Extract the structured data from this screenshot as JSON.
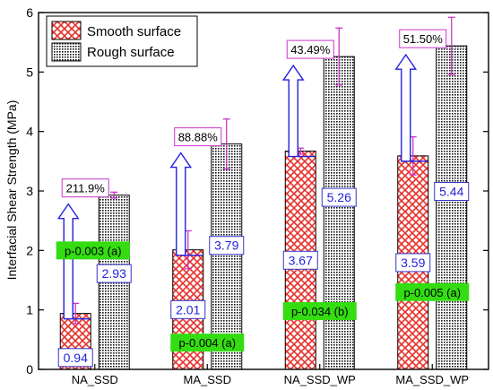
{
  "chart_data": {
    "type": "bar",
    "ylabel": "Interfacial Shear Strength (MPa)",
    "xlabel": "",
    "ylim": [
      0,
      6
    ],
    "yticks": [
      "0",
      "1",
      "2",
      "3",
      "4",
      "5",
      "6"
    ],
    "categories": [
      "NA_SSD",
      "MA_SSD",
      "NA_SSD_WP",
      "MA_SSD_WP"
    ],
    "legend_position": "top-left",
    "series": [
      {
        "name": "Smooth surface",
        "pattern": "crosshatch",
        "color": "#e8312a",
        "values": [
          0.94,
          2.01,
          3.67,
          3.59
        ],
        "value_labels": [
          "0.94",
          "2.01",
          "3.67",
          "3.59"
        ],
        "errors": [
          0.17,
          0.32,
          0.05,
          0.32
        ]
      },
      {
        "name": "Rough surface",
        "pattern": "dots",
        "color": "#111111",
        "values": [
          2.93,
          3.79,
          5.26,
          5.44
        ],
        "value_labels": [
          "2.93",
          "3.79",
          "5.26",
          "5.44"
        ],
        "errors": [
          0.05,
          0.42,
          0.48,
          0.48
        ]
      }
    ],
    "increase_labels": [
      "211.9%",
      "88.88%",
      "43.49%",
      "51.50%"
    ],
    "p_values": [
      "p-0.003 (a)",
      "p-0.004 (a)",
      "p-0.034 (b)",
      "p-0.005 (a)"
    ],
    "p_value_levels": [
      2.0,
      0.45,
      0.98,
      1.3
    ],
    "colors": {
      "axis": "#000000",
      "error_bar": "#cc33cc",
      "arrow": "#2222dd",
      "value_label_text": "#2222dd",
      "value_label_border": "#3333cc",
      "increase_label_border": "#cc33cc",
      "p_value_fill": "#33dd11"
    }
  }
}
